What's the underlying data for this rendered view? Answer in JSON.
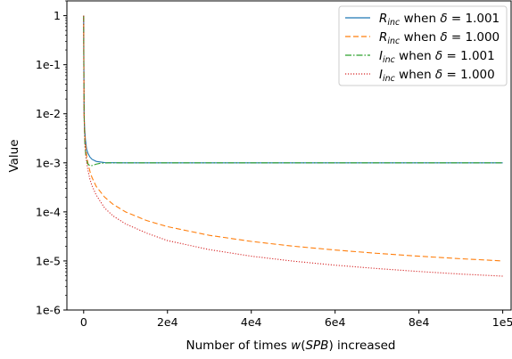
{
  "chart_data": {
    "type": "line",
    "title": "",
    "xlabel": {
      "prefix": "Number of times ",
      "fn": "w",
      "arg": "SPB",
      "suffix": " increased"
    },
    "ylabel": "Value",
    "xlim": [
      -4000,
      102000
    ],
    "ylim": [
      1e-06,
      2
    ],
    "yscale": "log",
    "grid": false,
    "legend_position": "top-right",
    "x_ticks": [
      {
        "value": 0,
        "label": "0"
      },
      {
        "value": 20000,
        "label": "2e4"
      },
      {
        "value": 40000,
        "label": "4e4"
      },
      {
        "value": 60000,
        "label": "6e4"
      },
      {
        "value": 80000,
        "label": "8e4"
      },
      {
        "value": 100000,
        "label": "1e5"
      }
    ],
    "y_ticks": [
      {
        "value": 1,
        "label": "1"
      },
      {
        "value": 0.1,
        "label": "1e-1"
      },
      {
        "value": 0.01,
        "label": "1e-2"
      },
      {
        "value": 0.001,
        "label": "1e-3"
      },
      {
        "value": 0.0001,
        "label": "1e-4"
      },
      {
        "value": 1e-05,
        "label": "1e-5"
      },
      {
        "value": 1e-06,
        "label": "1e-6"
      }
    ],
    "series": [
      {
        "name": "R_inc when δ = 1.001",
        "sym": "R",
        "sub": "inc",
        "delta": "1.001",
        "color": "#1f77b4",
        "dash": "",
        "x": [
          1,
          100,
          200,
          400,
          700,
          1000,
          1500,
          2000,
          3000,
          5000,
          10000,
          30000,
          60000,
          100000
        ],
        "y": [
          1,
          0.0107,
          0.0057,
          0.0031,
          0.0019,
          0.00158,
          0.00131,
          0.00118,
          0.00107,
          0.00101,
          0.001,
          0.001,
          0.001,
          0.001
        ]
      },
      {
        "name": "R_inc when δ = 1.000",
        "sym": "R",
        "sub": "inc",
        "delta": "1.000",
        "color": "#ff7f0e",
        "dash": "6,3",
        "x": [
          1,
          100,
          200,
          400,
          700,
          1000,
          1500,
          2000,
          3000,
          5000,
          7000,
          10000,
          15000,
          20000,
          30000,
          40000,
          50000,
          60000,
          70000,
          80000,
          90000,
          100000
        ],
        "y": [
          1,
          0.0099,
          0.005,
          0.0025,
          0.00143,
          0.001,
          0.00067,
          0.0005,
          0.00033,
          0.0002,
          0.000143,
          0.0001,
          6.67e-05,
          5e-05,
          3.33e-05,
          2.5e-05,
          2e-05,
          1.67e-05,
          1.43e-05,
          1.25e-05,
          1.11e-05,
          1e-05
        ]
      },
      {
        "name": "I_inc when δ = 1.001",
        "sym": "I",
        "sub": "inc",
        "delta": "1.001",
        "color": "#2ca02c",
        "dash": "7,2,1.5,2",
        "x": [
          1,
          50,
          150,
          300,
          600,
          1000,
          1500,
          2000,
          2500,
          3000,
          4000,
          6000,
          10000,
          30000,
          60000,
          100000
        ],
        "y": [
          1,
          0.05,
          0.0065,
          0.0022,
          0.0012,
          0.00095,
          0.00087,
          0.00088,
          0.00091,
          0.00094,
          0.00098,
          0.001,
          0.001,
          0.001,
          0.001,
          0.001
        ]
      },
      {
        "name": "I_inc when δ = 1.000",
        "sym": "I",
        "sub": "inc",
        "delta": "1.000",
        "color": "#d62728",
        "dash": "1.2,1.8",
        "x": [
          1,
          50,
          100,
          200,
          400,
          700,
          1000,
          1500,
          2000,
          3000,
          5000,
          7000,
          10000,
          15000,
          20000,
          30000,
          40000,
          50000,
          60000,
          70000,
          80000,
          90000,
          100000
        ],
        "y": [
          1,
          0.03,
          0.01,
          0.0045,
          0.002,
          0.00105,
          0.00072,
          0.00046,
          0.00034,
          0.00022,
          0.00012,
          8.3e-05,
          5.7e-05,
          3.7e-05,
          2.6e-05,
          1.7e-05,
          1.25e-05,
          9.9e-06,
          8.2e-06,
          7e-06,
          6.1e-06,
          5.4e-06,
          4.9e-06
        ]
      }
    ]
  }
}
